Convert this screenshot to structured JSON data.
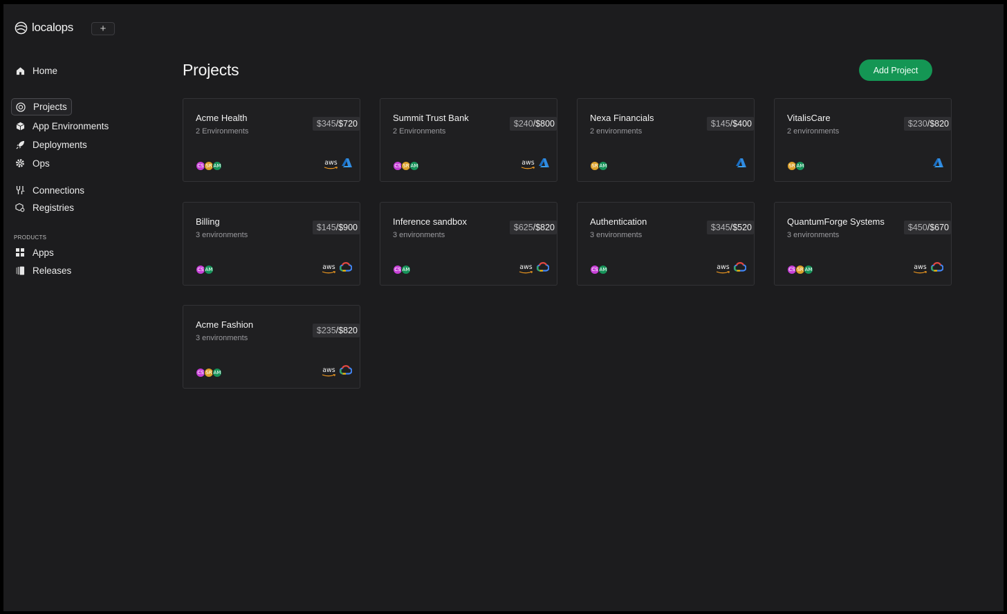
{
  "brand": {
    "name": "localops",
    "new_label": "+"
  },
  "nav": {
    "home": "Home",
    "projects": "Projects",
    "app_environments": "App Environments",
    "deployments": "Deployments",
    "ops": "Ops",
    "connections": "Connections",
    "registries": "Registries",
    "products_section": "PRODUCTS",
    "apps": "Apps",
    "releases": "Releases"
  },
  "main": {
    "title": "Projects",
    "add_button": "Add Project"
  },
  "projects": [
    {
      "name": "Acme Health",
      "envs": "2 Environments",
      "used": "$345",
      "total": "/$720",
      "avatars": [
        "CS",
        "SR",
        "AM"
      ],
      "providers": [
        "aws",
        "azure"
      ]
    },
    {
      "name": "Summit Trust Bank",
      "envs": "2 Environments",
      "used": "$240",
      "total": "/$800",
      "avatars": [
        "CS",
        "SR",
        "AM"
      ],
      "providers": [
        "aws",
        "azure"
      ]
    },
    {
      "name": "Nexa Financials",
      "envs": "2 environments",
      "used": "$145",
      "total": "/$400",
      "avatars": [
        "SR",
        "AM"
      ],
      "providers": [
        "azure"
      ]
    },
    {
      "name": "VitalisCare",
      "envs": "2 environments",
      "used": "$230",
      "total": "/$820",
      "avatars": [
        "SR",
        "AM"
      ],
      "providers": [
        "azure"
      ]
    },
    {
      "name": "Billing",
      "envs": "3 environments",
      "used": "$145",
      "total": "/$900",
      "avatars": [
        "CS",
        "AM"
      ],
      "providers": [
        "aws",
        "gcp"
      ]
    },
    {
      "name": "Inference sandbox",
      "envs": "3 environments",
      "used": "$625",
      "total": "/$820",
      "avatars": [
        "CS",
        "AM"
      ],
      "providers": [
        "aws",
        "gcp"
      ]
    },
    {
      "name": "Authentication",
      "envs": "3 environments",
      "used": "$345",
      "total": "/$520",
      "avatars": [
        "CS",
        "AM"
      ],
      "providers": [
        "aws",
        "gcp"
      ]
    },
    {
      "name": "QuantumForge Systems",
      "envs": "3 environments",
      "used": "$450",
      "total": "/$670",
      "avatars": [
        "CS",
        "SR",
        "AM"
      ],
      "providers": [
        "aws",
        "gcp"
      ]
    },
    {
      "name": "Acme Fashion",
      "envs": "3 environments",
      "used": "$235",
      "total": "/$820",
      "avatars": [
        "CS",
        "SR",
        "AM"
      ],
      "providers": [
        "aws",
        "gcp"
      ]
    }
  ],
  "provider_labels": {
    "aws": "aws"
  },
  "colors": {
    "accent": "#149654",
    "background": "#1c1c1e",
    "card": "#1f1f21"
  },
  "icons": {
    "home": "home-icon",
    "projects": "target-icon",
    "app_environments": "cube-icon",
    "deployments": "rocket-icon",
    "ops": "gear-icon",
    "connections": "plug-icon",
    "registries": "registry-icon",
    "apps": "grid-icon",
    "releases": "releases-icon"
  }
}
